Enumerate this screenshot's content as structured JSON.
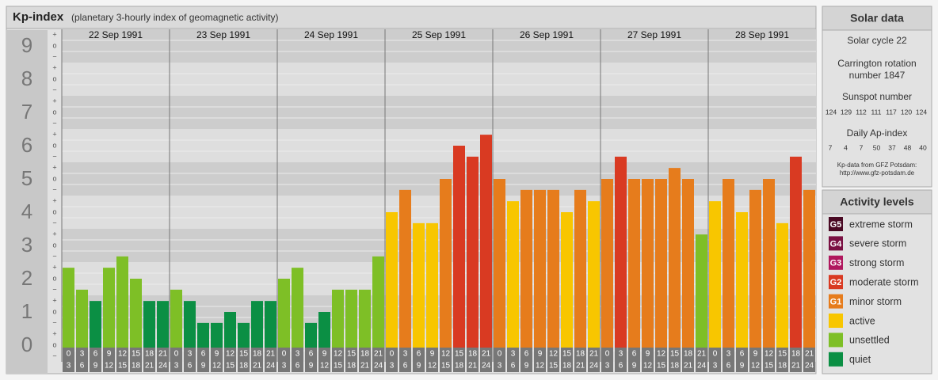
{
  "chart_data": {
    "type": "bar",
    "title": "Kp-index",
    "subtitle": "(planetary 3-hourly index of geomagnetic activity)",
    "ylim": [
      -0.5,
      9.5
    ],
    "yticks": [
      0,
      1,
      2,
      3,
      4,
      5,
      6,
      7,
      8,
      9
    ],
    "minor_labels": {
      "plus": "+",
      "zero": "o",
      "minus": "−"
    },
    "hour_labels": [
      [
        0,
        3
      ],
      [
        3,
        6
      ],
      [
        6,
        9
      ],
      [
        9,
        12
      ],
      [
        12,
        15
      ],
      [
        15,
        18
      ],
      [
        18,
        21
      ],
      [
        21,
        24
      ]
    ],
    "days": [
      {
        "date": "22 Sep 1991",
        "values": [
          2.33,
          1.67,
          1.33,
          2.33,
          2.67,
          2.0,
          1.33,
          1.33
        ],
        "colors": [
          "#7ebf26",
          "#7ebf26",
          "#0b8f44",
          "#7ebf26",
          "#7ebf26",
          "#7ebf26",
          "#0b8f44",
          "#0b8f44"
        ]
      },
      {
        "date": "23 Sep 1991",
        "values": [
          1.67,
          1.33,
          0.67,
          0.67,
          1.0,
          0.67,
          1.33,
          1.33
        ],
        "colors": [
          "#7ebf26",
          "#0b8f44",
          "#0b8f44",
          "#0b8f44",
          "#0b8f44",
          "#0b8f44",
          "#0b8f44",
          "#0b8f44"
        ]
      },
      {
        "date": "24 Sep 1991",
        "values": [
          2.0,
          2.33,
          0.67,
          1.0,
          1.67,
          1.67,
          1.67,
          2.67
        ],
        "colors": [
          "#7ebf26",
          "#7ebf26",
          "#0b8f44",
          "#0b8f44",
          "#7ebf26",
          "#7ebf26",
          "#7ebf26",
          "#7ebf26"
        ]
      },
      {
        "date": "25 Sep 1991",
        "values": [
          4.0,
          4.67,
          3.67,
          3.67,
          5.0,
          6.0,
          5.67,
          6.33
        ],
        "colors": [
          "#f8c600",
          "#e67c1c",
          "#f8c600",
          "#f8c600",
          "#e67c1c",
          "#d93a22",
          "#d93a22",
          "#d93a22"
        ]
      },
      {
        "date": "26 Sep 1991",
        "values": [
          5.0,
          4.33,
          4.67,
          4.67,
          4.67,
          4.0,
          4.67,
          4.33
        ],
        "colors": [
          "#e67c1c",
          "#f8c600",
          "#e67c1c",
          "#e67c1c",
          "#e67c1c",
          "#f8c600",
          "#e67c1c",
          "#f8c600"
        ]
      },
      {
        "date": "27 Sep 1991",
        "values": [
          5.0,
          5.67,
          5.0,
          5.0,
          5.0,
          5.33,
          5.0,
          3.33
        ],
        "colors": [
          "#e67c1c",
          "#d93a22",
          "#e67c1c",
          "#e67c1c",
          "#e67c1c",
          "#e67c1c",
          "#e67c1c",
          "#7ebf26"
        ]
      },
      {
        "date": "28 Sep 1991",
        "values": [
          4.33,
          5.0,
          4.0,
          4.67,
          5.0,
          3.67,
          5.67,
          4.67
        ],
        "colors": [
          "#f8c600",
          "#e67c1c",
          "#f8c600",
          "#e67c1c",
          "#e67c1c",
          "#f8c600",
          "#d93a22",
          "#e67c1c"
        ]
      }
    ]
  },
  "solar_data": {
    "title": "Solar data",
    "cycle": "Solar cycle 22",
    "carrington_1": "Carrington rotation",
    "carrington_2": "number 1847",
    "sunspot_title": "Sunspot number",
    "sunspot": [
      124,
      129,
      112,
      111,
      117,
      120,
      124
    ],
    "ap_title": "Daily Ap-index",
    "ap": [
      7,
      4,
      7,
      50,
      37,
      48,
      40
    ],
    "source_1": "Kp-data from GFZ Potsdam:",
    "source_2": "http://www.gfz-potsdam.de"
  },
  "activity_levels": {
    "title": "Activity levels",
    "items": [
      {
        "badge": "G5",
        "label": "extreme storm",
        "color": "#4a0a24"
      },
      {
        "badge": "G4",
        "label": "severe storm",
        "color": "#7a1042"
      },
      {
        "badge": "G3",
        "label": "strong storm",
        "color": "#b0185e"
      },
      {
        "badge": "G2",
        "label": "moderate storm",
        "color": "#d93a22"
      },
      {
        "badge": "G1",
        "label": "minor storm",
        "color": "#e67c1c"
      },
      {
        "label": "active",
        "color": "#f8c600"
      },
      {
        "label": "unsettled",
        "color": "#7ebf26"
      },
      {
        "label": "quiet",
        "color": "#0b8f44"
      }
    ]
  }
}
